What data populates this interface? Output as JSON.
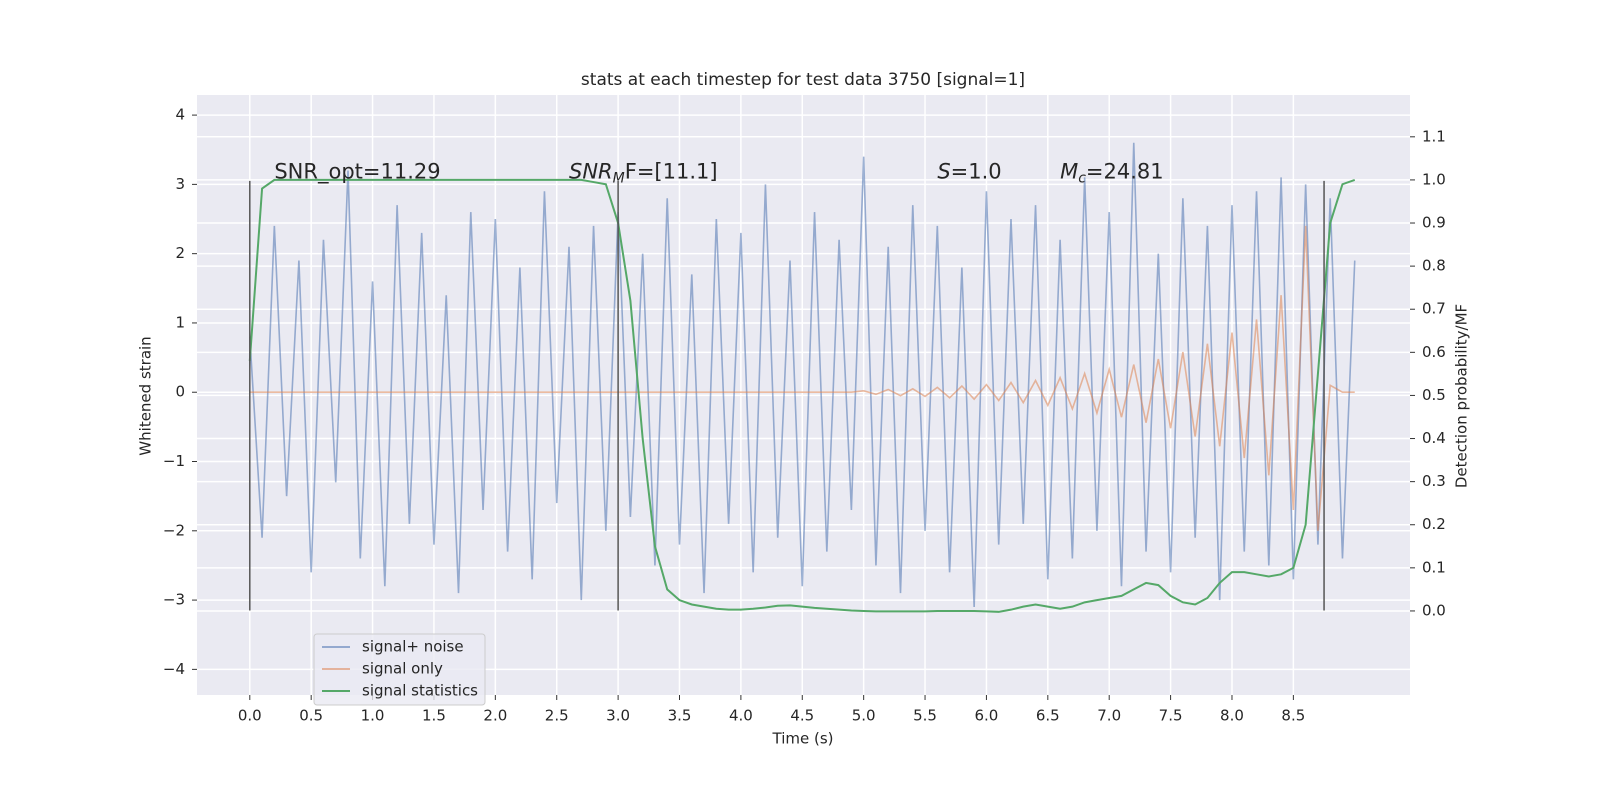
{
  "chart_data": {
    "type": "line",
    "title": "stats at each timestep for test data 3750 [signal=1]",
    "xlabel": "Time (s)",
    "ylabel": "Whitened strain",
    "y2label": "Detection probability/MF",
    "grid": true,
    "legend": "lower left",
    "xlim": [
      -0.43,
      9.45
    ],
    "ylim": [
      -4.37,
      4.29
    ],
    "y2lim": [
      -0.195,
      1.197
    ],
    "xticks": [
      {
        "value": 0,
        "label": "0.0"
      },
      0.5,
      {
        "value": 1,
        "label": "1.0"
      },
      1.5,
      {
        "value": 2,
        "label": "2.0"
      },
      2.5,
      {
        "value": 3,
        "label": "3.0"
      },
      3.5,
      {
        "value": 4,
        "label": "4.0"
      },
      4.5,
      {
        "value": 5,
        "label": "5.0"
      },
      5.5,
      {
        "value": 6,
        "label": "6.0"
      },
      6.5,
      {
        "value": 7,
        "label": "7.0"
      },
      7.5,
      {
        "value": 8,
        "label": "8.0"
      },
      8.5
    ],
    "yticks": [
      {
        "value": -4,
        "label": "−4"
      },
      {
        "value": -3,
        "label": "−3"
      },
      {
        "value": -2,
        "label": "−2"
      },
      {
        "value": -1,
        "label": "−1"
      },
      0,
      1,
      2,
      3,
      4
    ],
    "y2ticks": [
      {
        "value": 0,
        "label": "0.0"
      },
      0.1,
      0.2,
      0.3,
      0.4,
      0.5,
      0.6,
      0.7,
      0.8,
      0.9,
      {
        "value": 1,
        "label": "1.0"
      },
      1.1
    ],
    "vlines": [
      0,
      3.0,
      8.75
    ],
    "vline_range": [
      -3.15,
      3.05
    ],
    "annotations": [
      {
        "x": 0.2,
        "y": 3.17,
        "parts": [
          "SNR_opt=11.29"
        ]
      },
      {
        "x": 2.6,
        "y": 3.17,
        "parts": [
          "SNR",
          "M",
          "F=[11.1]"
        ]
      },
      {
        "x": 5.6,
        "y": 3.17,
        "parts": [
          "S",
          "=1.0"
        ]
      },
      {
        "x": 6.6,
        "y": 3.17,
        "parts": [
          "M",
          "c",
          "=24.81"
        ]
      }
    ],
    "x": [
      0,
      0.1,
      0.2,
      0.3,
      0.4,
      0.5,
      0.6,
      0.7,
      0.8,
      0.9,
      1,
      1.1,
      1.2,
      1.3,
      1.4,
      1.5,
      1.6,
      1.7,
      1.8,
      1.9,
      2,
      2.1,
      2.2,
      2.3,
      2.4,
      2.5,
      2.6,
      2.7,
      2.8,
      2.9,
      3,
      3.1,
      3.2,
      3.3,
      3.4,
      3.5,
      3.6,
      3.7,
      3.8,
      3.9,
      4,
      4.1,
      4.2,
      4.3,
      4.4,
      4.5,
      4.6,
      4.7,
      4.8,
      4.9,
      5,
      5.1,
      5.2,
      5.3,
      5.4,
      5.5,
      5.6,
      5.7,
      5.8,
      5.9,
      6,
      6.1,
      6.2,
      6.3,
      6.4,
      6.5,
      6.6,
      6.7,
      6.8,
      6.9,
      7,
      7.1,
      7.2,
      7.3,
      7.4,
      7.5,
      7.6,
      7.7,
      7.8,
      7.9,
      8,
      8.1,
      8.2,
      8.3,
      8.4,
      8.5,
      8.6,
      8.7,
      8.8,
      8.9,
      9
    ],
    "series": [
      {
        "name": "signal+ noise",
        "color": "#4c72b0",
        "axis": "y",
        "values": [
          0.8,
          -2.1,
          2.4,
          -1.5,
          1.9,
          -2.6,
          2.2,
          -1.3,
          3.2,
          -2.4,
          1.6,
          -2.8,
          2.7,
          -1.9,
          2.3,
          -2.2,
          1.4,
          -2.9,
          2.6,
          -1.7,
          2.5,
          -2.3,
          1.8,
          -2.7,
          2.9,
          -1.6,
          2.1,
          -3.0,
          2.4,
          -2.0,
          2.6,
          -1.8,
          2.0,
          -2.5,
          2.8,
          -2.2,
          1.7,
          -2.9,
          2.5,
          -1.9,
          2.3,
          -2.6,
          3.0,
          -2.1,
          1.9,
          -2.8,
          2.6,
          -2.3,
          2.2,
          -1.7,
          3.4,
          -2.5,
          2.1,
          -2.9,
          2.7,
          -2.0,
          2.4,
          -2.6,
          1.8,
          -3.1,
          2.9,
          -2.2,
          2.5,
          -1.9,
          2.7,
          -2.7,
          2.2,
          -2.4,
          3.1,
          -2.0,
          2.6,
          -2.8,
          3.6,
          -2.3,
          2.0,
          -2.6,
          2.8,
          -2.1,
          2.4,
          -3.0,
          2.7,
          -2.3,
          2.9,
          -2.5,
          3.1,
          -2.7,
          3.0,
          -2.2,
          2.8,
          -2.4,
          1.9
        ]
      },
      {
        "name": "signal only",
        "color": "#dd8452",
        "axis": "y",
        "values": [
          0,
          0,
          0,
          0,
          0,
          0,
          0,
          0,
          0,
          0,
          0,
          0,
          0,
          0,
          0,
          0,
          0,
          0,
          0,
          0,
          0,
          0,
          0,
          0,
          0,
          0,
          0,
          0,
          0,
          0,
          0,
          0,
          0,
          0,
          0,
          0,
          0,
          0,
          0,
          0,
          0,
          0,
          0,
          0,
          0,
          0,
          0,
          0,
          0,
          0,
          0.02,
          -0.03,
          0.04,
          -0.05,
          0.05,
          -0.06,
          0.07,
          -0.08,
          0.09,
          -0.1,
          0.11,
          -0.12,
          0.14,
          -0.15,
          0.17,
          -0.19,
          0.21,
          -0.24,
          0.27,
          -0.3,
          0.33,
          -0.36,
          0.4,
          -0.44,
          0.48,
          -0.52,
          0.58,
          -0.64,
          0.7,
          -0.78,
          0.86,
          -0.95,
          1.05,
          -1.2,
          1.4,
          -1.7,
          2.4,
          -2.0,
          0.1,
          0.0,
          0.0
        ]
      },
      {
        "name": "signal statistics",
        "color": "#55a868",
        "axis": "y2",
        "values": [
          0.58,
          0.98,
          1.0,
          1.0,
          1.0,
          1.0,
          1.0,
          1.0,
          1.0,
          1.0,
          1.0,
          1.0,
          1.0,
          1.0,
          1.0,
          1.0,
          1.0,
          1.0,
          1.0,
          1.0,
          1.0,
          1.0,
          1.0,
          1.0,
          1.0,
          1.0,
          1.0,
          1.0,
          0.995,
          0.99,
          0.9,
          0.72,
          0.4,
          0.15,
          0.05,
          0.025,
          0.015,
          0.01,
          0.005,
          0.003,
          0.003,
          0.005,
          0.008,
          0.012,
          0.013,
          0.01,
          0.007,
          0.005,
          0.003,
          0.001,
          0.0,
          -0.001,
          -0.001,
          -0.001,
          -0.001,
          -0.001,
          0.0,
          0.0,
          0.0,
          0.0,
          -0.001,
          -0.002,
          0.003,
          0.01,
          0.015,
          0.01,
          0.005,
          0.01,
          0.02,
          0.025,
          0.03,
          0.035,
          0.05,
          0.065,
          0.06,
          0.035,
          0.02,
          0.015,
          0.03,
          0.065,
          0.09,
          0.09,
          0.085,
          0.08,
          0.085,
          0.1,
          0.2,
          0.55,
          0.9,
          0.99,
          1.0
        ]
      }
    ]
  }
}
